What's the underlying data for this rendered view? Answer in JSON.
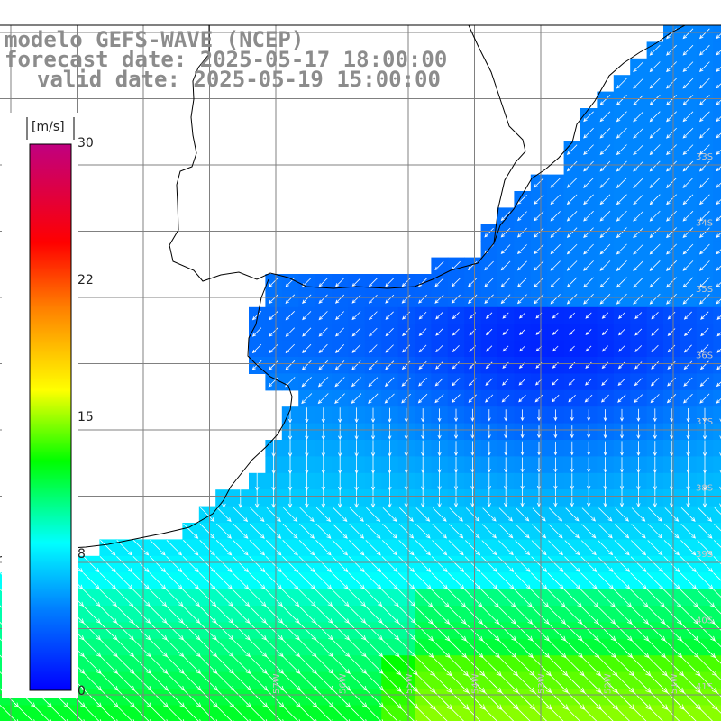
{
  "title": {
    "line1": "modelo GEFS-WAVE (NCEP)",
    "line2": "forecast date: 2025-05-17 18:00:00",
    "line3": "valid date: 2025-05-19 15:00:00"
  },
  "colorbar": {
    "unit": "[m/s]",
    "ticks": [
      "30",
      "22",
      "15",
      "8",
      "0"
    ],
    "colors": [
      "#0000ff",
      "#0080ff",
      "#00ffff",
      "#00ff00",
      "#ffff00",
      "#ff8000",
      "#ff0000",
      "#c00080"
    ]
  },
  "map": {
    "lat_labels": [
      "33S",
      "34S",
      "35S",
      "36S",
      "37S",
      "38S",
      "39S",
      "40S",
      "41S"
    ],
    "lon_labels": [
      "57W",
      "56W",
      "55W",
      "54W",
      "53W",
      "52W",
      "51W"
    ],
    "ocean_base_color": "#0064ff",
    "land_color": "#ffffff"
  }
}
